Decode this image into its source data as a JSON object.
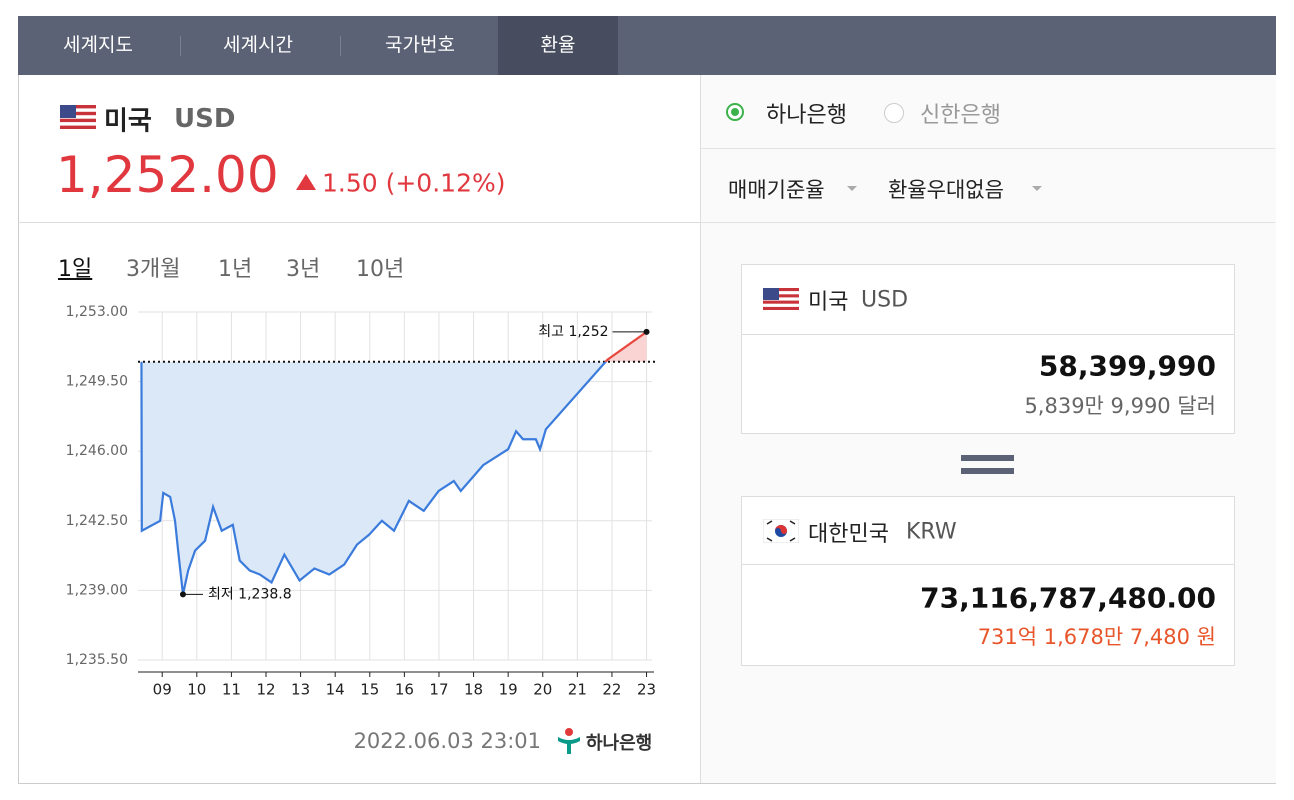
{
  "tabs": [
    "세계지도",
    "세계시간",
    "국가번호",
    "환율"
  ],
  "header": {
    "country": "미국",
    "currency": "USD",
    "rate": "1,252.00",
    "change": "1.50 (+0.12%)"
  },
  "periods": [
    "1일",
    "3개월",
    "1년",
    "3년",
    "10년"
  ],
  "chart_data": {
    "type": "line",
    "x": [
      8.4,
      8.41,
      8.94,
      9.03,
      9.23,
      9.37,
      9.46,
      9.6,
      9.75,
      9.95,
      10.24,
      10.47,
      10.72,
      11.04,
      11.24,
      11.53,
      11.82,
      12.16,
      12.53,
      12.97,
      13.4,
      13.83,
      14.26,
      14.63,
      14.98,
      15.35,
      15.7,
      16.13,
      16.56,
      16.99,
      17.43,
      17.63,
      18.28,
      19.0,
      19.23,
      19.43,
      19.8,
      19.92,
      20.09,
      21.87,
      23.0
    ],
    "values": [
      1250.5,
      1242.0,
      1242.5,
      1243.9,
      1243.7,
      1242.5,
      1241.0,
      1238.8,
      1240.0,
      1241.0,
      1241.5,
      1243.2,
      1242.0,
      1242.3,
      1240.5,
      1240.0,
      1239.8,
      1239.4,
      1240.8,
      1239.5,
      1240.1,
      1239.8,
      1240.3,
      1241.3,
      1241.8,
      1242.5,
      1242.0,
      1243.5,
      1243.0,
      1244.0,
      1244.5,
      1244.0,
      1245.3,
      1246.1,
      1247.0,
      1246.6,
      1246.6,
      1246.1,
      1247.1,
      1250.6,
      1252.0
    ],
    "color": "#3a7bdc",
    "up_color": "#e8483f",
    "base": 1250.5,
    "xlim": [
      8.3,
      23.1
    ],
    "xticks": [
      {
        "value": 9,
        "label": "09"
      },
      10,
      11,
      12,
      13,
      14,
      15,
      16,
      17,
      18,
      19,
      20,
      21,
      22,
      23
    ],
    "ylim": [
      1235.5,
      1253
    ],
    "yticks": [
      {
        "value": 1253,
        "label": "1,253.00"
      },
      {
        "value": 1249.5,
        "label": "1,249.50"
      },
      {
        "value": 1246,
        "label": "1,246.00"
      },
      {
        "value": 1242.5,
        "label": "1,242.50"
      },
      {
        "value": 1239,
        "label": "1,239.00"
      },
      {
        "value": 1235.5,
        "label": "1,235.50"
      }
    ],
    "grid": true,
    "annotations": [
      {
        "text": "최고 1,252",
        "x": 23.0,
        "y": 1252.0
      },
      {
        "text": "최저 1,238.8",
        "x": 9.6,
        "y": 1238.8
      }
    ]
  },
  "timestamp": "2022.06.03 23:01",
  "source": "하나은행",
  "banks": [
    "하나은행",
    "신한은행"
  ],
  "options": [
    "매매기준율",
    "환율우대없음"
  ],
  "from": {
    "country": "미국",
    "currency": "USD",
    "amount": "58,399,990",
    "amount_text": "5,839만 9,990 달러"
  },
  "to": {
    "country": "대한민국",
    "currency": "KRW",
    "amount": "73,116,787,480.00",
    "amount_text": "731억 1,678만 7,480 원"
  }
}
